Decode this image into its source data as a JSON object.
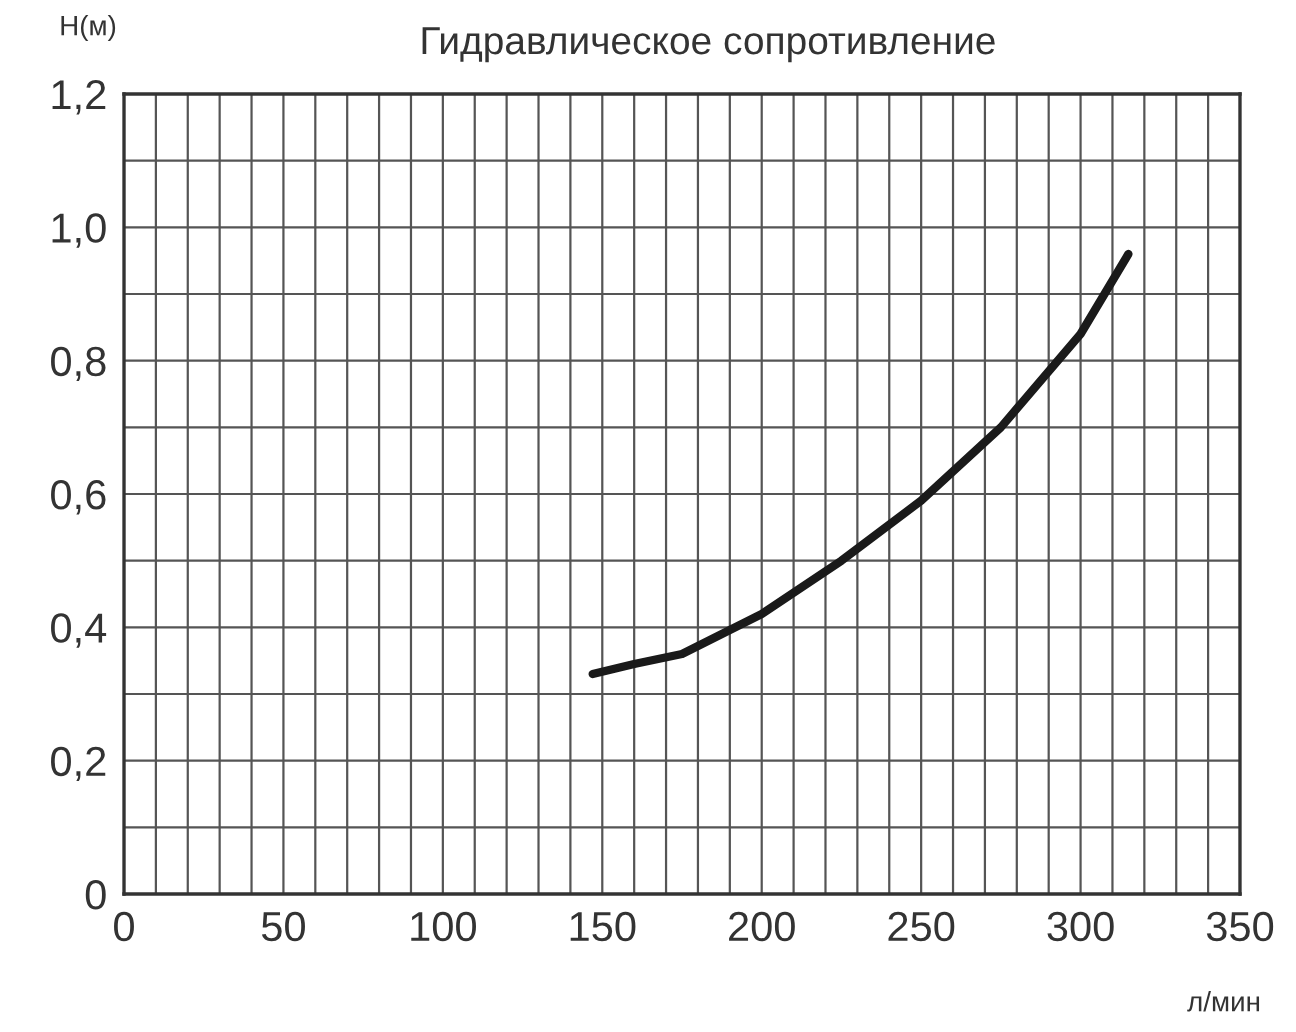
{
  "chart_data": {
    "type": "line",
    "title": "Гидравлическое сопротивление",
    "xlabel": "л/мин",
    "ylabel": "H(м)",
    "x": [
      147,
      160,
      175,
      200,
      225,
      250,
      275,
      300,
      315
    ],
    "values": [
      0.33,
      0.345,
      0.36,
      0.42,
      0.5,
      0.59,
      0.7,
      0.84,
      0.96
    ],
    "color": "#1a1a1a",
    "line_style": "solid",
    "grid": true,
    "xlim": [
      0,
      350
    ],
    "ylim": [
      0,
      1.2
    ],
    "xticks": [
      0,
      {
        "value": 10,
        "label": null
      },
      {
        "value": 20,
        "label": null
      },
      {
        "value": 30,
        "label": null
      },
      {
        "value": 40,
        "label": null
      },
      50,
      {
        "value": 60,
        "label": null
      },
      {
        "value": 70,
        "label": null
      },
      {
        "value": 80,
        "label": null
      },
      {
        "value": 90,
        "label": null
      },
      100,
      {
        "value": 110,
        "label": null
      },
      {
        "value": 120,
        "label": null
      },
      {
        "value": 130,
        "label": null
      },
      {
        "value": 140,
        "label": null
      },
      150,
      {
        "value": 160,
        "label": null
      },
      {
        "value": 170,
        "label": null
      },
      {
        "value": 180,
        "label": null
      },
      {
        "value": 190,
        "label": null
      },
      200,
      {
        "value": 210,
        "label": null
      },
      {
        "value": 220,
        "label": null
      },
      {
        "value": 230,
        "label": null
      },
      {
        "value": 240,
        "label": null
      },
      250,
      {
        "value": 260,
        "label": null
      },
      {
        "value": 270,
        "label": null
      },
      {
        "value": 280,
        "label": null
      },
      {
        "value": 290,
        "label": null
      },
      300,
      {
        "value": 310,
        "label": null
      },
      {
        "value": 320,
        "label": null
      },
      {
        "value": 330,
        "label": null
      },
      {
        "value": 340,
        "label": null
      },
      350
    ],
    "yticks": [
      0,
      {
        "value": 0.1,
        "label": null
      },
      {
        "value": 0.2,
        "label": "0,2"
      },
      {
        "value": 0.3,
        "label": null
      },
      {
        "value": 0.4,
        "label": "0,4"
      },
      {
        "value": 0.5,
        "label": null
      },
      {
        "value": 0.6,
        "label": "0,6"
      },
      {
        "value": 0.7,
        "label": null
      },
      {
        "value": 0.8,
        "label": "0,8"
      },
      {
        "value": 0.9,
        "label": null
      },
      {
        "value": 1.0,
        "label": "1,0"
      },
      {
        "value": 1.1,
        "label": null
      },
      {
        "value": 1.2,
        "label": "1,2"
      }
    ]
  }
}
